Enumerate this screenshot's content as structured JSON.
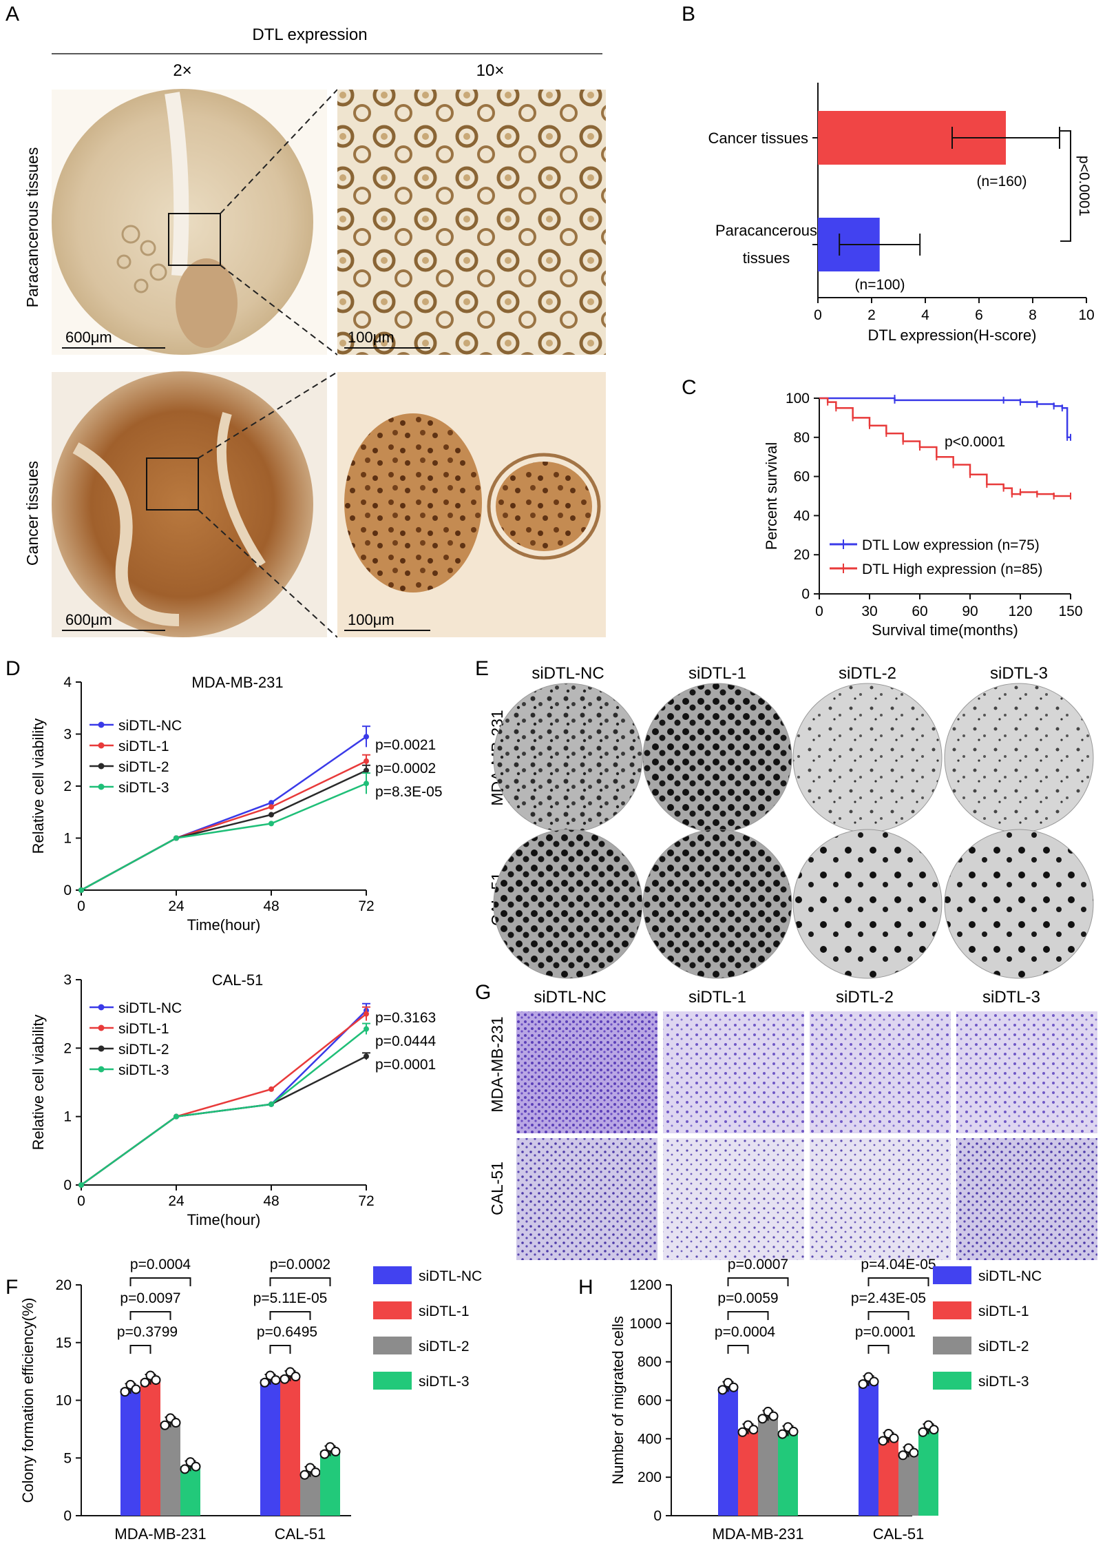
{
  "colors": {
    "nc": "#3a3ae8",
    "s1": "#e83a3a",
    "s2": "#2a2a2a",
    "s3": "#1fbf78",
    "bar_nc": "#4242f0",
    "bar_s1": "#f04545",
    "bar_s2": "#8c8c8c",
    "bar_s3": "#22c97a"
  },
  "panels": {
    "A": {
      "letter": "A",
      "title": "DTL expression",
      "col_headers": [
        "2×",
        "10×"
      ],
      "row_labels": [
        "Paracancerous tissues",
        "Cancer tissues"
      ],
      "scale_bars": [
        "600μm",
        "100μm",
        "600μm",
        "100μm"
      ]
    },
    "B": {
      "letter": "B"
    },
    "C": {
      "letter": "C"
    },
    "D": {
      "letter": "D"
    },
    "E": {
      "letter": "E",
      "col_labels": [
        "siDTL-NC",
        "siDTL-1",
        "siDTL-2",
        "siDTL-3"
      ],
      "row_labels": [
        "MDA-MB-231",
        "CAL-51"
      ]
    },
    "G": {
      "letter": "G",
      "col_labels": [
        "siDTL-NC",
        "siDTL-1",
        "siDTL-2",
        "siDTL-3"
      ],
      "row_labels": [
        "MDA-MB-231",
        "CAL-51"
      ]
    },
    "F": {
      "letter": "F"
    },
    "H": {
      "letter": "H"
    }
  },
  "chart_data": [
    {
      "id": "B",
      "type": "bar",
      "orientation": "horizontal",
      "categories": [
        "Cancer tissues",
        "Paracancerous tissues"
      ],
      "values": [
        7.0,
        2.3
      ],
      "errors": [
        2.0,
        1.5
      ],
      "n_labels": [
        "(n=160)",
        "(n=100)"
      ],
      "xlabel": "DTL expression(H-score)",
      "xlim": [
        0,
        10
      ],
      "xticks": [
        0,
        2,
        4,
        6,
        8,
        10
      ],
      "annotation": "p<0.0001"
    },
    {
      "id": "C",
      "type": "line",
      "xlabel": "Survival time(months)",
      "ylabel": "Percent survival",
      "xlim": [
        0,
        150
      ],
      "ylim": [
        0,
        100
      ],
      "xticks": [
        0,
        30,
        60,
        90,
        120,
        150
      ],
      "yticks": [
        0,
        20,
        40,
        60,
        80,
        100
      ],
      "annotation": "p<0.0001",
      "series": [
        {
          "name": "DTL Low expression (n=75)",
          "x": [
            0,
            45,
            45,
            110,
            120,
            130,
            140,
            145,
            148,
            150
          ],
          "y": [
            100,
            100,
            99,
            99,
            98,
            97,
            96,
            95,
            80,
            80
          ]
        },
        {
          "name": "DTL High expression (n=85)",
          "x": [
            0,
            5,
            10,
            20,
            30,
            40,
            50,
            60,
            70,
            80,
            90,
            100,
            110,
            115,
            120,
            130,
            140,
            150
          ],
          "y": [
            100,
            98,
            95,
            90,
            86,
            82,
            78,
            75,
            70,
            66,
            61,
            56,
            54,
            51,
            52,
            51,
            50,
            50
          ]
        }
      ]
    },
    {
      "id": "D1",
      "type": "line",
      "title": "MDA-MB-231",
      "xlabel": "Time(hour)",
      "ylabel": "Relative cell viability",
      "x": [
        0,
        24,
        48,
        72
      ],
      "xlim": [
        0,
        72
      ],
      "ylim": [
        0,
        4
      ],
      "xticks": [
        0,
        24,
        48,
        72
      ],
      "yticks": [
        0,
        1,
        2,
        3,
        4
      ],
      "series": [
        {
          "name": "siDTL-NC",
          "values": [
            0,
            1,
            1.68,
            2.95
          ],
          "err_last": 0.2
        },
        {
          "name": "siDTL-1",
          "values": [
            0,
            1,
            1.6,
            2.48
          ],
          "err_last": 0.12
        },
        {
          "name": "siDTL-2",
          "values": [
            0,
            1,
            1.45,
            2.3
          ],
          "err_last": 0.1
        },
        {
          "name": "siDTL-3",
          "values": [
            0,
            1,
            1.28,
            2.05
          ],
          "err_last": 0.2
        }
      ],
      "p_labels": [
        "p=0.0021",
        "p=0.0002",
        "p=8.3E-05"
      ]
    },
    {
      "id": "D2",
      "type": "line",
      "title": "CAL-51",
      "xlabel": "Time(hour)",
      "ylabel": "Relative cell viability",
      "x": [
        0,
        24,
        48,
        72
      ],
      "xlim": [
        0,
        72
      ],
      "ylim": [
        0,
        3
      ],
      "xticks": [
        0,
        24,
        48,
        72
      ],
      "yticks": [
        0,
        1,
        2,
        3
      ],
      "series": [
        {
          "name": "siDTL-NC",
          "values": [
            0,
            1,
            1.18,
            2.55
          ],
          "err_last": 0.1
        },
        {
          "name": "siDTL-1",
          "values": [
            0,
            1,
            1.4,
            2.5
          ],
          "err_last": 0.1
        },
        {
          "name": "siDTL-2",
          "values": [
            0,
            1,
            1.18,
            1.88
          ],
          "err_last": 0.05
        },
        {
          "name": "siDTL-3",
          "values": [
            0,
            1,
            1.18,
            2.28
          ],
          "err_last": 0.08
        }
      ],
      "p_labels": [
        "p=0.3163",
        "p=0.0444",
        "p=0.0001"
      ]
    },
    {
      "id": "F",
      "type": "bar",
      "ylabel": "Colony formation efficiency(%)",
      "categories": [
        "MDA-MB-231",
        "CAL-51"
      ],
      "ylim": [
        0,
        20
      ],
      "yticks": [
        0,
        5,
        10,
        15,
        20
      ],
      "series": [
        {
          "name": "siDTL-NC",
          "values": [
            11.0,
            11.8
          ]
        },
        {
          "name": "siDTL-1",
          "values": [
            11.8,
            12.1
          ]
        },
        {
          "name": "siDTL-2",
          "values": [
            8.1,
            3.8
          ]
        },
        {
          "name": "siDTL-3",
          "values": [
            4.3,
            5.6
          ]
        }
      ],
      "p_labels": [
        [
          "p=0.3799",
          "p=0.0097",
          "p=0.0004"
        ],
        [
          "p=0.6495",
          "p=5.11E-05",
          "p=0.0002"
        ]
      ]
    },
    {
      "id": "H",
      "type": "bar",
      "ylabel": "Number of migrated cells",
      "categories": [
        "MDA-MB-231",
        "CAL-51"
      ],
      "ylim": [
        0,
        1200
      ],
      "yticks": [
        0,
        200,
        400,
        600,
        800,
        1000,
        1200
      ],
      "series": [
        {
          "name": "siDTL-NC",
          "values": [
            670,
            700
          ]
        },
        {
          "name": "siDTL-1",
          "values": [
            450,
            405
          ]
        },
        {
          "name": "siDTL-2",
          "values": [
            520,
            330
          ]
        },
        {
          "name": "siDTL-3",
          "values": [
            440,
            450
          ]
        }
      ],
      "p_labels": [
        [
          "p=0.0004",
          "p=0.0059",
          "p=0.0007"
        ],
        [
          "p=0.0001",
          "p=2.43E-05",
          "p=4.04E-05"
        ]
      ]
    }
  ]
}
